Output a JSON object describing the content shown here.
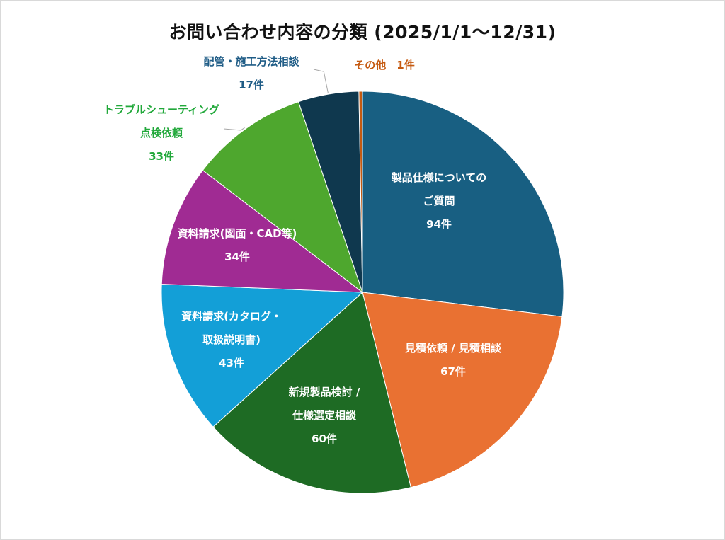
{
  "chart_data": {
    "type": "pie",
    "title": "お問い合わせ内容の分類 (2025/1/1〜12/31)",
    "unit": "件",
    "start_angle_deg": 0,
    "direction": "clockwise",
    "slices": [
      {
        "label_lines": [
          "製品仕様についての",
          "ご質問"
        ],
        "value": 94,
        "value_text": "94件",
        "color": "#185F82",
        "label_color": "#ffffff",
        "label_position": "inside"
      },
      {
        "label_lines": [
          "見積依頼 / 見積相談"
        ],
        "value": 67,
        "value_text": "67件",
        "color": "#E97132",
        "label_color": "#ffffff",
        "label_position": "inside"
      },
      {
        "label_lines": [
          "新規製品検討 /",
          "仕様選定相談"
        ],
        "value": 60,
        "value_text": "60件",
        "color": "#1E6B24",
        "label_color": "#ffffff",
        "label_position": "inside"
      },
      {
        "label_lines": [
          "資料請求(カタログ・",
          "取扱説明書)"
        ],
        "value": 43,
        "value_text": "43件",
        "color": "#139FD7",
        "label_color": "#ffffff",
        "label_position": "inside"
      },
      {
        "label_lines": [
          "資料請求(図面・CAD等)"
        ],
        "value": 34,
        "value_text": "34件",
        "color": "#A02B93",
        "label_color": "#ffffff",
        "label_position": "inside"
      },
      {
        "label_lines": [
          "トラブルシューティング",
          "点検依頼"
        ],
        "value": 33,
        "value_text": "33件",
        "color": "#4EA72E",
        "label_color": "#21A83A",
        "label_position": "outside"
      },
      {
        "label_lines": [
          "配管・施工方法相談"
        ],
        "value": 17,
        "value_text": "17件",
        "color": "#0F384E",
        "label_color": "#1F5C86",
        "label_position": "outside"
      },
      {
        "label_lines": [
          "その他"
        ],
        "value": 1,
        "value_text": "1件",
        "color": "#C55A11",
        "label_color": "#C55A11",
        "label_position": "outside-inline"
      }
    ],
    "legend": "none",
    "leader_lines": true,
    "leader_color": "#a6a6a6",
    "slice_border_color": "#ffffff"
  }
}
